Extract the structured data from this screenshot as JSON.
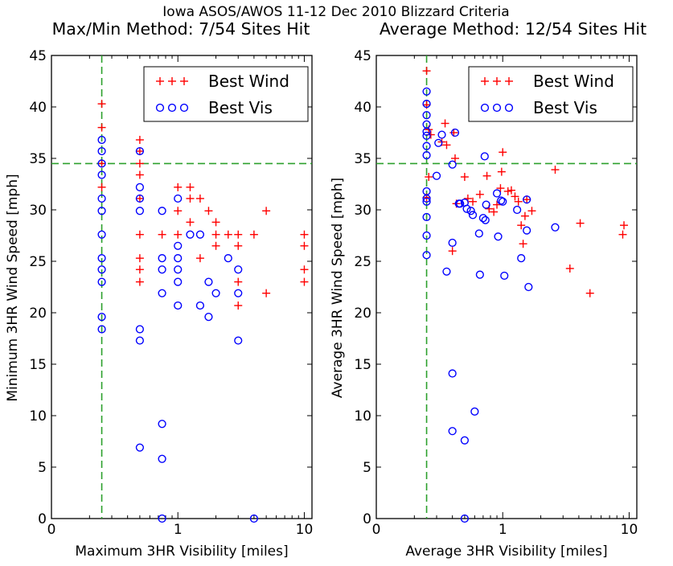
{
  "figure_title": "Iowa ASOS/AWOS 11-12 Dec 2010 Blizzard Criteria",
  "chart_data": [
    {
      "type": "scatter",
      "title": "Max/Min Method: 7/54 Sites Hit",
      "xlabel": "Maximum 3HR Visibility [miles]",
      "ylabel": "Minimum 3HR Wind Speed [mph]",
      "x_scale": "log",
      "xlim": [
        0.1,
        11.5
      ],
      "ylim": [
        0,
        45
      ],
      "x_ticks": [
        {
          "value": 0.1,
          "label": "0"
        },
        {
          "value": 1,
          "label": "1"
        },
        {
          "value": 10,
          "label": "10"
        }
      ],
      "y_ticks": [
        0,
        5,
        10,
        15,
        20,
        25,
        30,
        35,
        40,
        45
      ],
      "thresholds": {
        "x": 0.25,
        "y": 34.5,
        "color": "#2ca02c"
      },
      "legend": {
        "position": "top-right",
        "entries": [
          "Best Wind",
          "Best Vis"
        ]
      },
      "series": [
        {
          "name": "Best Wind",
          "marker": "plus",
          "color": "#ff0000",
          "points": [
            [
              0.25,
              40.3
            ],
            [
              0.25,
              38.0
            ],
            [
              0.25,
              34.5
            ],
            [
              0.25,
              32.2
            ],
            [
              0.5,
              36.8
            ],
            [
              0.5,
              35.7
            ],
            [
              0.5,
              34.5
            ],
            [
              0.5,
              33.4
            ],
            [
              0.5,
              31.1
            ],
            [
              0.5,
              27.6
            ],
            [
              0.5,
              25.3
            ],
            [
              0.5,
              24.2
            ],
            [
              0.5,
              23.0
            ],
            [
              0.75,
              27.6
            ],
            [
              1.0,
              32.2
            ],
            [
              1.0,
              29.9
            ],
            [
              1.0,
              27.6
            ],
            [
              1.25,
              32.2
            ],
            [
              1.25,
              31.1
            ],
            [
              1.5,
              31.1
            ],
            [
              1.25,
              28.8
            ],
            [
              1.75,
              29.9
            ],
            [
              1.5,
              25.3
            ],
            [
              2.0,
              28.8
            ],
            [
              2.0,
              27.6
            ],
            [
              2.0,
              26.5
            ],
            [
              2.5,
              27.6
            ],
            [
              3.0,
              27.6
            ],
            [
              3.0,
              26.5
            ],
            [
              3.0,
              23.0
            ],
            [
              3.0,
              20.7
            ],
            [
              4.0,
              27.6
            ],
            [
              5.0,
              29.9
            ],
            [
              5.0,
              21.9
            ],
            [
              10.0,
              27.6
            ],
            [
              10.0,
              26.5
            ],
            [
              10.0,
              24.2
            ],
            [
              10.0,
              23.0
            ]
          ]
        },
        {
          "name": "Best Vis",
          "marker": "circle",
          "color": "#0000ff",
          "points": [
            [
              0.25,
              36.8
            ],
            [
              0.25,
              35.7
            ],
            [
              0.25,
              34.5
            ],
            [
              0.25,
              33.4
            ],
            [
              0.25,
              31.1
            ],
            [
              0.25,
              29.9
            ],
            [
              0.25,
              27.6
            ],
            [
              0.25,
              25.3
            ],
            [
              0.25,
              24.2
            ],
            [
              0.25,
              23.0
            ],
            [
              0.25,
              19.6
            ],
            [
              0.25,
              18.4
            ],
            [
              0.5,
              35.7
            ],
            [
              0.5,
              32.2
            ],
            [
              0.5,
              31.1
            ],
            [
              0.5,
              29.9
            ],
            [
              0.5,
              18.4
            ],
            [
              0.5,
              17.3
            ],
            [
              0.5,
              6.9
            ],
            [
              0.75,
              29.9
            ],
            [
              0.75,
              25.3
            ],
            [
              0.75,
              24.2
            ],
            [
              0.75,
              21.9
            ],
            [
              0.75,
              9.2
            ],
            [
              0.75,
              5.8
            ],
            [
              0.75,
              0.0
            ],
            [
              1.0,
              31.1
            ],
            [
              1.0,
              26.5
            ],
            [
              1.0,
              25.3
            ],
            [
              1.0,
              24.2
            ],
            [
              1.0,
              23.0
            ],
            [
              1.0,
              20.7
            ],
            [
              1.25,
              27.6
            ],
            [
              1.5,
              27.6
            ],
            [
              1.5,
              20.7
            ],
            [
              1.75,
              23.0
            ],
            [
              1.75,
              19.6
            ],
            [
              2.0,
              21.9
            ],
            [
              2.5,
              25.3
            ],
            [
              3.0,
              24.2
            ],
            [
              3.0,
              21.9
            ],
            [
              3.0,
              17.3
            ],
            [
              4.0,
              0.0
            ]
          ]
        }
      ]
    },
    {
      "type": "scatter",
      "title": "Average Method: 12/54 Sites Hit",
      "xlabel": "Average 3HR Visibility [miles]",
      "ylabel": "Average 3HR Wind Speed [mph]",
      "x_scale": "log",
      "xlim": [
        0.1,
        11.5
      ],
      "ylim": [
        0,
        45
      ],
      "x_ticks": [
        {
          "value": 0.1,
          "label": "0"
        },
        {
          "value": 1,
          "label": "1"
        },
        {
          "value": 10,
          "label": "10"
        }
      ],
      "y_ticks": [
        0,
        5,
        10,
        15,
        20,
        25,
        30,
        35,
        40,
        45
      ],
      "thresholds": {
        "x": 0.25,
        "y": 34.5,
        "color": "#2ca02c"
      },
      "legend": {
        "position": "top-right",
        "entries": [
          "Best Wind",
          "Best Vis"
        ]
      },
      "series": [
        {
          "name": "Best Wind",
          "marker": "plus",
          "color": "#ff0000",
          "points": [
            [
              0.25,
              43.5
            ],
            [
              0.25,
              40.2
            ],
            [
              0.26,
              37.8
            ],
            [
              0.27,
              37.3
            ],
            [
              0.26,
              33.2
            ],
            [
              0.25,
              31.2
            ],
            [
              0.33,
              36.6
            ],
            [
              0.35,
              38.4
            ],
            [
              0.36,
              36.3
            ],
            [
              0.41,
              37.5
            ],
            [
              0.42,
              35.0
            ],
            [
              0.5,
              33.2
            ],
            [
              0.43,
              30.6
            ],
            [
              0.4,
              26.0
            ],
            [
              0.53,
              31.1
            ],
            [
              0.58,
              30.8
            ],
            [
              0.66,
              31.5
            ],
            [
              0.75,
              33.3
            ],
            [
              0.78,
              30.1
            ],
            [
              0.85,
              29.8
            ],
            [
              0.9,
              30.5
            ],
            [
              0.96,
              32.1
            ],
            [
              0.98,
              33.7
            ],
            [
              1.0,
              35.6
            ],
            [
              1.1,
              31.8
            ],
            [
              1.17,
              31.9
            ],
            [
              1.25,
              31.3
            ],
            [
              1.33,
              30.8
            ],
            [
              1.4,
              28.5
            ],
            [
              1.45,
              26.7
            ],
            [
              1.5,
              29.4
            ],
            [
              1.55,
              31.0
            ],
            [
              1.7,
              29.9
            ],
            [
              2.6,
              33.9
            ],
            [
              3.4,
              24.3
            ],
            [
              4.1,
              28.7
            ],
            [
              4.9,
              21.9
            ],
            [
              8.9,
              27.6
            ],
            [
              9.1,
              28.5
            ]
          ]
        },
        {
          "name": "Best Vis",
          "marker": "circle",
          "color": "#0000ff",
          "points": [
            [
              0.25,
              41.5
            ],
            [
              0.25,
              40.3
            ],
            [
              0.25,
              39.2
            ],
            [
              0.25,
              38.3
            ],
            [
              0.25,
              37.6
            ],
            [
              0.25,
              37.2
            ],
            [
              0.25,
              36.2
            ],
            [
              0.25,
              35.3
            ],
            [
              0.25,
              31.8
            ],
            [
              0.25,
              31.1
            ],
            [
              0.25,
              30.8
            ],
            [
              0.25,
              29.3
            ],
            [
              0.25,
              27.5
            ],
            [
              0.25,
              25.6
            ],
            [
              0.31,
              36.5
            ],
            [
              0.33,
              37.3
            ],
            [
              0.3,
              33.3
            ],
            [
              0.36,
              24.0
            ],
            [
              0.4,
              34.4
            ],
            [
              0.42,
              37.5
            ],
            [
              0.45,
              30.6
            ],
            [
              0.46,
              30.6
            ],
            [
              0.5,
              30.7
            ],
            [
              0.52,
              30.1
            ],
            [
              0.56,
              29.9
            ],
            [
              0.58,
              29.5
            ],
            [
              0.65,
              27.7
            ],
            [
              0.7,
              29.2
            ],
            [
              0.72,
              35.2
            ],
            [
              0.73,
              29.0
            ],
            [
              0.74,
              30.5
            ],
            [
              0.66,
              23.7
            ],
            [
              0.9,
              31.6
            ],
            [
              0.92,
              27.4
            ],
            [
              0.97,
              30.9
            ],
            [
              1.0,
              30.8
            ],
            [
              1.03,
              23.6
            ],
            [
              1.3,
              30.0
            ],
            [
              1.4,
              25.3
            ],
            [
              1.55,
              31.0
            ],
            [
              1.55,
              28.0
            ],
            [
              1.6,
              22.5
            ],
            [
              2.6,
              28.3
            ],
            [
              0.4,
              14.1
            ],
            [
              0.4,
              8.5
            ],
            [
              0.6,
              10.4
            ],
            [
              0.5,
              7.6
            ],
            [
              0.5,
              0.0
            ],
            [
              0.4,
              26.8
            ]
          ]
        }
      ]
    }
  ]
}
